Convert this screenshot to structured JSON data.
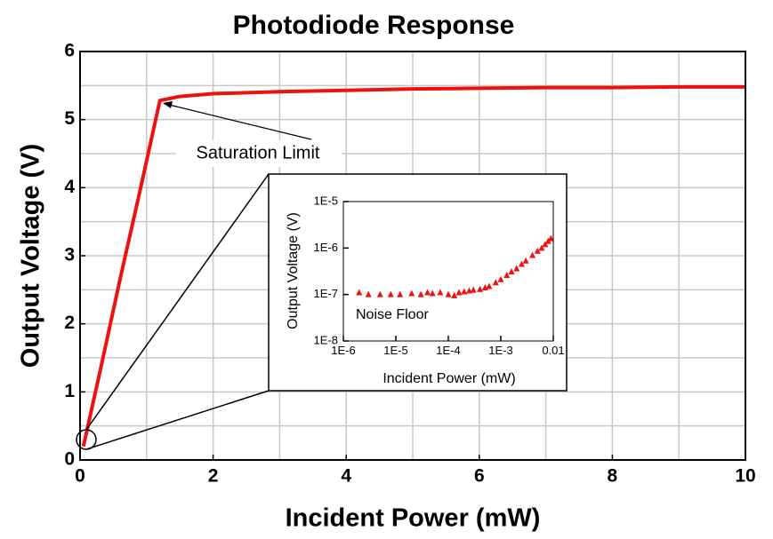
{
  "chart_data": [
    {
      "type": "line",
      "title": "Photodiode Response",
      "x_label": "Incident Power (mW)",
      "y_label": "Output Voltage (V)",
      "x": [
        0.05,
        0.3,
        0.6,
        0.9,
        1.2,
        1.5,
        2,
        3,
        4,
        5,
        6,
        7,
        8,
        9,
        10
      ],
      "values": [
        0.2,
        1.3,
        2.65,
        3.95,
        5.28,
        5.34,
        5.38,
        5.41,
        5.43,
        5.45,
        5.46,
        5.47,
        5.47,
        5.48,
        5.48
      ],
      "color": "#ee1111",
      "xlim": [
        0,
        10
      ],
      "xticks": [
        0,
        2,
        4,
        6,
        8,
        10
      ],
      "xgrid": [
        1,
        3,
        5,
        7,
        9
      ],
      "ylim": [
        0,
        6
      ],
      "yticks": [
        0,
        1,
        2,
        3,
        4,
        5,
        6
      ],
      "ygrid": [
        0.5,
        1.5,
        2.5,
        3.5,
        4.5,
        5.5
      ],
      "grid": true,
      "annotation": "Saturation Limit"
    },
    {
      "type": "scatter",
      "x_label": "Incident Power (mW)",
      "y_label": "Output Voltage (V)",
      "x": [
        2e-06,
        3e-06,
        5e-06,
        8e-06,
        1.2e-05,
        2e-05,
        3e-05,
        4e-05,
        5e-05,
        7e-05,
        0.0001,
        0.00013,
        0.00016,
        0.0002,
        0.00025,
        0.0003,
        0.0004,
        0.0005,
        0.0006,
        0.0008,
        0.001,
        0.0013,
        0.0016,
        0.002,
        0.0025,
        0.003,
        0.004,
        0.005,
        0.006,
        0.007,
        0.008,
        0.009
      ],
      "values": [
        1.1e-07,
        1e-07,
        1e-07,
        1e-07,
        1e-07,
        1.05e-07,
        1e-07,
        1.1e-07,
        1.05e-07,
        1.1e-07,
        1e-07,
        9.5e-08,
        1.1e-07,
        1.15e-07,
        1.2e-07,
        1.25e-07,
        1.3e-07,
        1.4e-07,
        1.5e-07,
        1.8e-07,
        2.1e-07,
        2.6e-07,
        3.1e-07,
        3.6e-07,
        4.5e-07,
        5.3e-07,
        7e-07,
        8.6e-07,
        1e-06,
        1.2e-06,
        1.4e-06,
        1.6e-06
      ],
      "color": "#ee1111",
      "log_x": true,
      "log_y": true,
      "xlim": [
        1e-06,
        0.01
      ],
      "xticks": [
        {
          "value": 1e-06,
          "label": "1E-6"
        },
        {
          "value": 1e-05,
          "label": "1E-5"
        },
        {
          "value": 0.0001,
          "label": "1E-4"
        },
        {
          "value": 0.001,
          "label": "1E-3"
        },
        0.01
      ],
      "ylim": [
        1e-08,
        1e-05
      ],
      "yticks": [
        {
          "value": 1e-08,
          "label": "1E-8"
        },
        {
          "value": 1e-07,
          "label": "1E-7"
        },
        {
          "value": 1e-06,
          "label": "1E-6"
        },
        {
          "value": 1e-05,
          "label": "1E-5"
        }
      ],
      "annotation": "Noise Floor"
    }
  ]
}
